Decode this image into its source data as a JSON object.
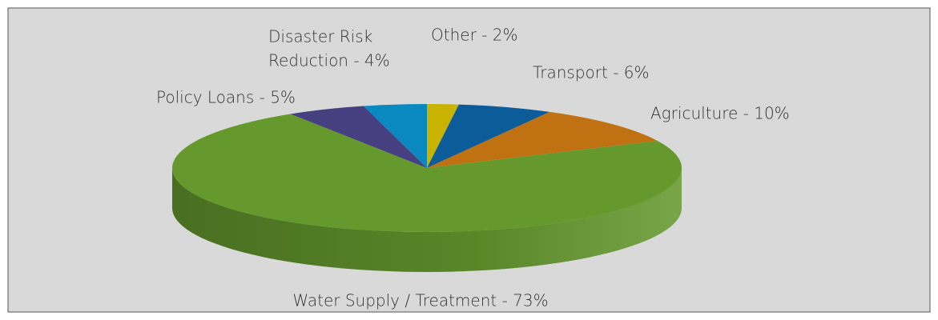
{
  "chart_data": {
    "type": "pie3d",
    "values": [
      2,
      6,
      10,
      73,
      5,
      4
    ],
    "value_labels": [
      [
        "Other - 2%"
      ],
      [
        "Transport - 6%"
      ],
      [
        "Agriculture - 10%"
      ],
      [
        "Water Supply / Treatment - 73%"
      ],
      [
        "Policy Loans - 5%"
      ],
      [
        "Disaster Risk",
        "Reduction - 4%"
      ]
    ],
    "colors": [
      "#c8b400",
      "#0c5c9a",
      "#c07212",
      "#65992e",
      "#463f80",
      "#0a88c0"
    ]
  }
}
